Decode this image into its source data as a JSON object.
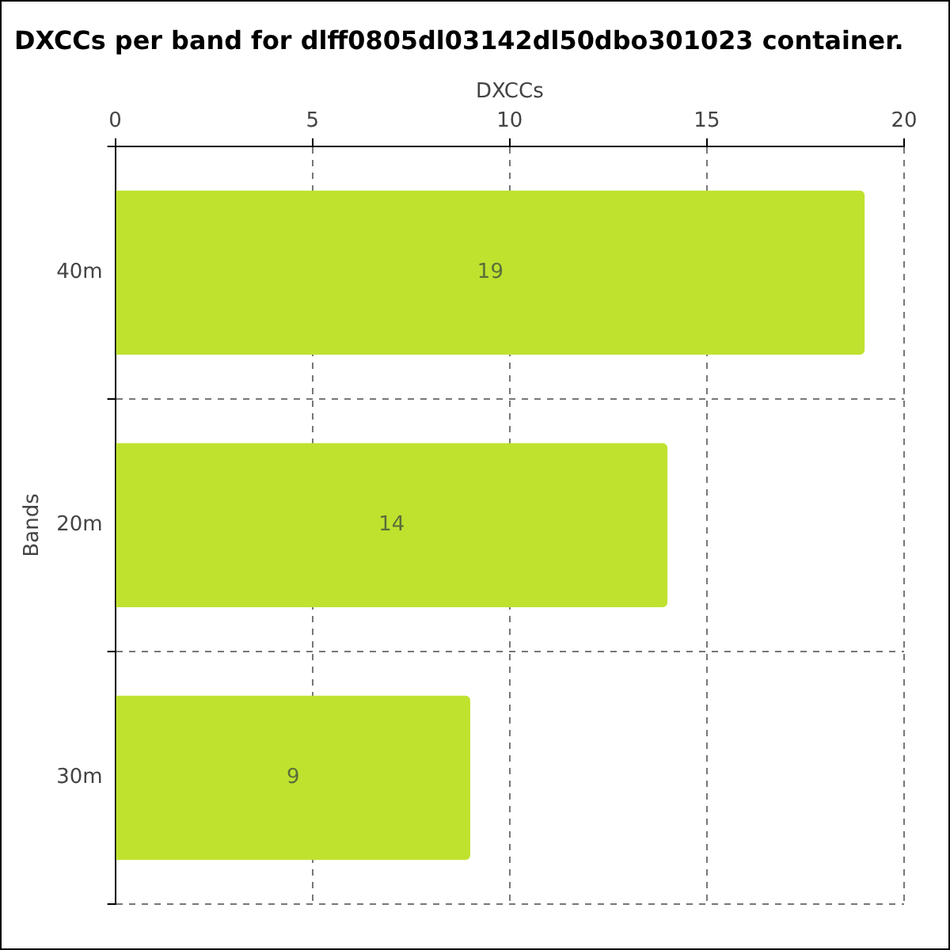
{
  "chart_data": {
    "type": "bar",
    "orientation": "horizontal",
    "title": "DXCCs per band for dlff0805dl03142dl50dbo301023 container.",
    "xlabel": "DXCCs",
    "ylabel": "Bands",
    "categories": [
      "40m",
      "20m",
      "30m"
    ],
    "values": [
      19,
      14,
      9
    ],
    "color": "#bfe22f",
    "xlim": [
      0,
      20
    ],
    "xticks": [
      0,
      5,
      10,
      15,
      20
    ],
    "grid": true,
    "data_labels": true,
    "legend": false
  }
}
